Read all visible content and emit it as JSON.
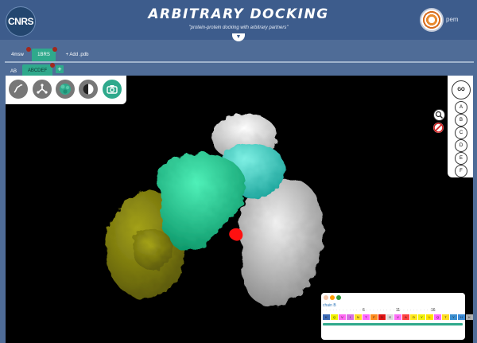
{
  "header": {
    "logo_text": "CNRS",
    "title": "ARBITRARY DOCKING",
    "subtitle": "\"protein-protein docking with arbitrary partners\"",
    "right_logo_text": "pem",
    "collapse_icon": "chevron-down-icon"
  },
  "pdb_tabs": [
    {
      "label": "4msw",
      "active": false
    },
    {
      "label": "1BRS",
      "active": true
    },
    {
      "label": "+ Add .pdb",
      "active": false
    }
  ],
  "chain_tabs": [
    {
      "label": "AB",
      "active": false
    },
    {
      "label": "ABCDEF",
      "active": true
    },
    {
      "label": "+",
      "active": false
    }
  ],
  "toolbar": [
    {
      "name": "ribbon-icon"
    },
    {
      "name": "ligand-icon"
    },
    {
      "name": "surface-icon"
    },
    {
      "name": "contrast-icon"
    },
    {
      "name": "camera-icon"
    }
  ],
  "chain_panel": {
    "go_label": "GO",
    "chains": [
      "A",
      "B",
      "C",
      "D",
      "E",
      "F"
    ]
  },
  "side_tools": [
    "search-icon",
    "forbidden-icon"
  ],
  "sequence_panel": {
    "chain_label": "chain B",
    "dots": ". . . . . . . . . . . . . . . . . . . . . . . . . . . . . . . . .",
    "numbers": [
      "6",
      "11",
      "16"
    ],
    "residues": [
      {
        "code": "K",
        "color": "#3c6bb6"
      },
      {
        "code": "Q",
        "color": "#f2f200"
      },
      {
        "code": "V",
        "color": "#ff69f2"
      },
      {
        "code": "I",
        "color": "#d86fe4"
      },
      {
        "code": "N",
        "color": "#ffdd22"
      },
      {
        "code": "T",
        "color": "#ff66ff"
      },
      {
        "code": "F",
        "color": "#ff8c1e"
      },
      {
        "code": "D",
        "color": "#e01212"
      },
      {
        "code": "G",
        "color": "#dcdcdc"
      },
      {
        "code": "V",
        "color": "#ff6ef8"
      },
      {
        "code": "A",
        "color": "#ff4040"
      },
      {
        "code": "D",
        "color": "#ffe81c"
      },
      {
        "code": "Y",
        "color": "#f2f20c"
      },
      {
        "code": "L",
        "color": "#ffe300"
      },
      {
        "code": "Q",
        "color": "#ff66ff"
      },
      {
        "code": "T",
        "color": "#ffdd22"
      },
      {
        "code": "Y",
        "color": "#3b8fd0"
      },
      {
        "code": "H",
        "color": "#3a8bd8"
      },
      {
        "code": "K",
        "color": "#b0b0b0"
      },
      {
        "code": "L",
        "color": "#f0f000"
      }
    ]
  },
  "colors": {
    "accent": "#2fa98c",
    "header_bg": "#3d5c8c",
    "page_bg": "#4f6c97",
    "tab_dot": "#a3281c",
    "chain_gold": "#7a7a0a",
    "chain_green": "#1fd39a",
    "chain_cyan": "#42d6c8",
    "chain_white": "#d4d4d4",
    "chain_gray": "#bdbdbd",
    "ligand_red": "#ff1010"
  }
}
